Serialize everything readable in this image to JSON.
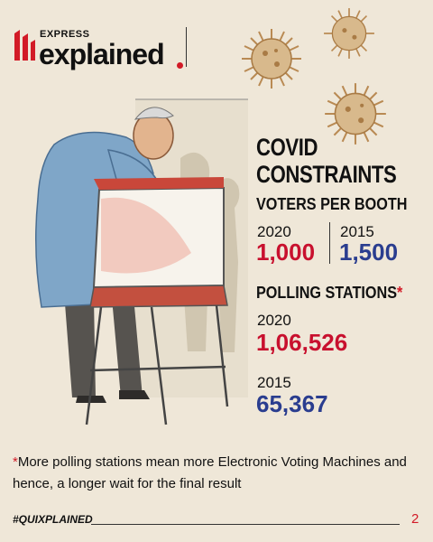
{
  "brand": {
    "top": "EXPRESS",
    "name": "explained"
  },
  "heading": {
    "line1": "COVID",
    "line2": "CONSTRAINTS"
  },
  "voters_per_booth": {
    "label": "VOTERS PER BOOTH",
    "a": {
      "year": "2020",
      "value": "1,000"
    },
    "b": {
      "year": "2015",
      "value": "1,500"
    }
  },
  "polling_stations": {
    "label": "POLLING STATIONS",
    "marker": "*",
    "a": {
      "year": "2020",
      "value": "1,06,526"
    },
    "b": {
      "year": "2015",
      "value": "65,367"
    }
  },
  "footnote": {
    "marker": "*",
    "text": "More polling stations mean more Electronic Voting Machines and hence, a longer wait for the final result"
  },
  "footer": {
    "hashtag": "#QUIXPLAINED",
    "page": "2"
  },
  "colors": {
    "accent_red": "#c8102e",
    "accent_blue": "#2a3d8f",
    "background": "#efe7d8"
  }
}
